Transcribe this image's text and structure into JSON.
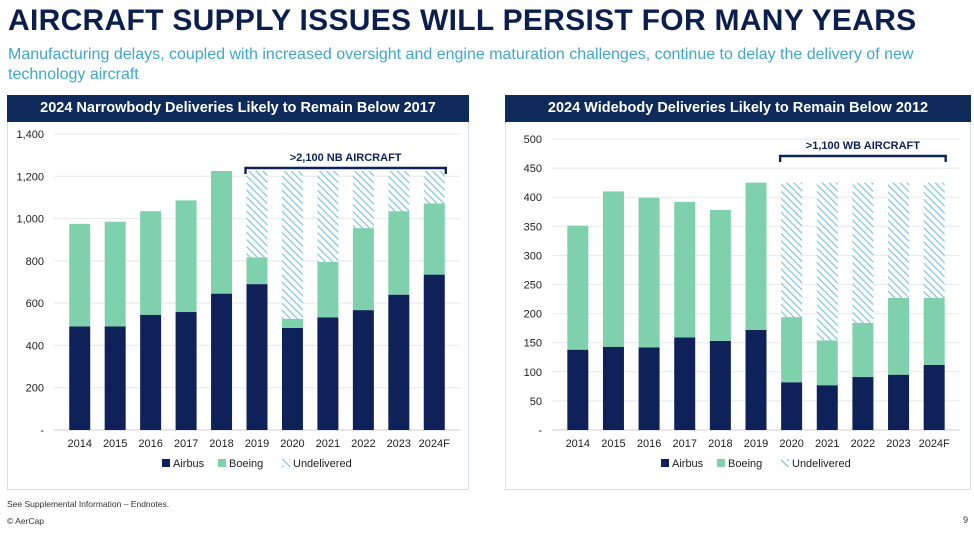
{
  "header": {
    "title": "AIRCRAFT SUPPLY ISSUES WILL PERSIST FOR MANY YEARS",
    "subtitle": "Manufacturing delays, coupled with increased oversight and engine maturation challenges, continue to delay the delivery of new technology aircraft"
  },
  "footer": {
    "note": "See Supplemental Information – Endnotes.",
    "copyright": "© AerCap",
    "page": "9"
  },
  "colors": {
    "airbus": "#0e2259",
    "boeing": "#7fd1ad",
    "undelivered": "#7ec3dc",
    "header_bg": "#0e2b5c",
    "accent": "#3fa7c9"
  },
  "chart_data": [
    {
      "type": "bar",
      "stacked": true,
      "title": "2024 Narrowbody Deliveries Likely to Remain Below 2017",
      "categories": [
        "2014",
        "2015",
        "2016",
        "2017",
        "2018",
        "2019",
        "2020",
        "2021",
        "2022",
        "2023",
        "2024F"
      ],
      "series": [
        {
          "name": "Airbus",
          "values": [
            490,
            490,
            545,
            558,
            645,
            690,
            483,
            533,
            567,
            640,
            735
          ]
        },
        {
          "name": "Boeing",
          "values": [
            485,
            495,
            490,
            528,
            580,
            127,
            43,
            262,
            388,
            395,
            337
          ]
        },
        {
          "name": "Undelivered",
          "values": [
            0,
            0,
            0,
            0,
            0,
            408,
            699,
            430,
            270,
            190,
            153
          ]
        }
      ],
      "ylim": [
        0,
        1400
      ],
      "yticks": [
        "-",
        "200",
        "400",
        "600",
        "800",
        "1,000",
        "1,200",
        "1,400"
      ],
      "grid": true,
      "annotation": {
        "text": ">2,100 NB AIRCRAFT",
        "from": "2019",
        "to": "2024F"
      },
      "legend": [
        "Airbus",
        "Boeing",
        "Undelivered"
      ]
    },
    {
      "type": "bar",
      "stacked": true,
      "title": "2024 Widebody Deliveries Likely to Remain Below 2012",
      "categories": [
        "2014",
        "2015",
        "2016",
        "2017",
        "2018",
        "2019",
        "2020",
        "2021",
        "2022",
        "2023",
        "2024F"
      ],
      "series": [
        {
          "name": "Airbus",
          "values": [
            138,
            143,
            142,
            159,
            153,
            172,
            82,
            77,
            91,
            95,
            112
          ]
        },
        {
          "name": "Boeing",
          "values": [
            213,
            267,
            257,
            233,
            225,
            253,
            112,
            77,
            93,
            132,
            115
          ]
        },
        {
          "name": "Undelivered",
          "values": [
            0,
            0,
            0,
            0,
            0,
            0,
            231,
            271,
            241,
            198,
            198
          ]
        }
      ],
      "ylim": [
        0,
        500
      ],
      "yticks": [
        "-",
        "50",
        "100",
        "150",
        "200",
        "250",
        "300",
        "350",
        "400",
        "450",
        "500"
      ],
      "grid": true,
      "annotation": {
        "text": ">1,100 WB AIRCRAFT",
        "from": "2020",
        "to": "2024F"
      },
      "legend": [
        "Airbus",
        "Boeing",
        "Undelivered"
      ]
    }
  ]
}
